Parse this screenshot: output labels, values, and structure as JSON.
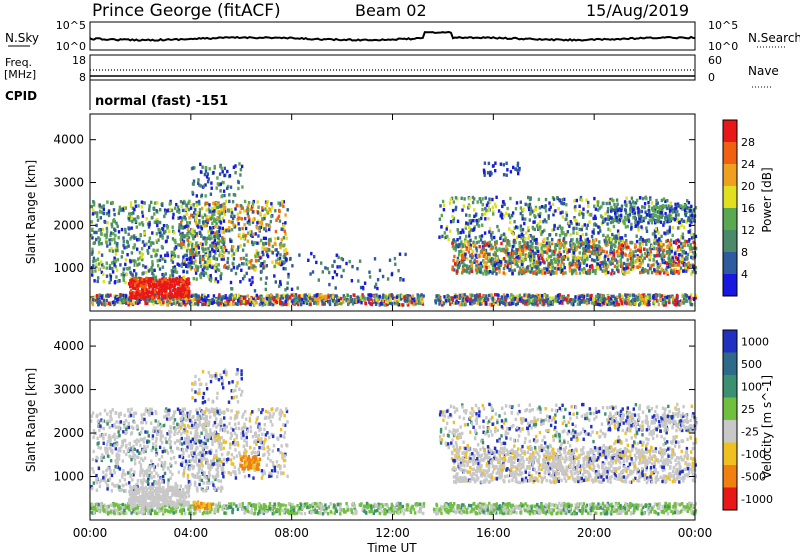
{
  "header": {
    "station": "Prince George (fitACF)",
    "beam": "Beam 02",
    "date": "15/Aug/2019"
  },
  "sky_panel": {
    "left_label": "N.Sky",
    "right_label": "N.Search",
    "left_ticks": [
      "10^5",
      "10^0"
    ],
    "right_ticks": [
      "10^5",
      "10^0"
    ]
  },
  "freq_panel": {
    "left_label_line1": "Freq.",
    "left_label_line2": "[MHz]",
    "left_ticks": [
      "18",
      "8"
    ],
    "right_label": "Nave",
    "right_ticks": [
      "60",
      "0"
    ]
  },
  "cpid": {
    "label": "CPID",
    "value": "normal (fast) -151"
  },
  "x_axis": {
    "title": "Time UT",
    "ticks": [
      "00:00",
      "04:00",
      "08:00",
      "12:00",
      "16:00",
      "20:00",
      "00:00"
    ]
  },
  "power_panel": {
    "ylabel": "Slant Range [km]",
    "yticks": [
      "1000",
      "2000",
      "3000",
      "4000"
    ],
    "colorbar_title": "Power [dB]",
    "colorbar_ticks": [
      "4",
      "8",
      "12",
      "16",
      "20",
      "24",
      "28"
    ],
    "colors": [
      "#1818e0",
      "#2e5aa0",
      "#4a8a6a",
      "#5aa850",
      "#e0e020",
      "#f0a020",
      "#f06010",
      "#e81818"
    ]
  },
  "velocity_panel": {
    "ylabel": "Slant Range [km]",
    "yticks": [
      "1000",
      "2000",
      "3000",
      "4000"
    ],
    "colorbar_title": "Velocity [m s^-1]",
    "colorbar_ticks": [
      "1000",
      "500",
      "100",
      "25",
      "-25",
      "-100",
      "-500",
      "-1000"
    ],
    "colors": [
      "#2030c0",
      "#2e6a8a",
      "#3a9070",
      "#70c040",
      "#c8c8c8",
      "#f0c020",
      "#f08010",
      "#e81818"
    ]
  },
  "chart_data": {
    "type": "heatmap",
    "x": [
      "00:00",
      "04:00",
      "08:00",
      "12:00",
      "16:00",
      "20:00",
      "00:00"
    ],
    "xlabel": "Time UT",
    "ylabel": "Slant Range [km]",
    "ylim": [
      0,
      4600
    ],
    "panels": [
      "Power [dB]",
      "Velocity [m s^-1]"
    ],
    "power_scale": [
      4,
      8,
      12,
      16,
      20,
      24,
      28
    ],
    "velocity_scale": [
      1000,
      500,
      100,
      25,
      -25,
      -100,
      -500,
      -1000
    ]
  }
}
